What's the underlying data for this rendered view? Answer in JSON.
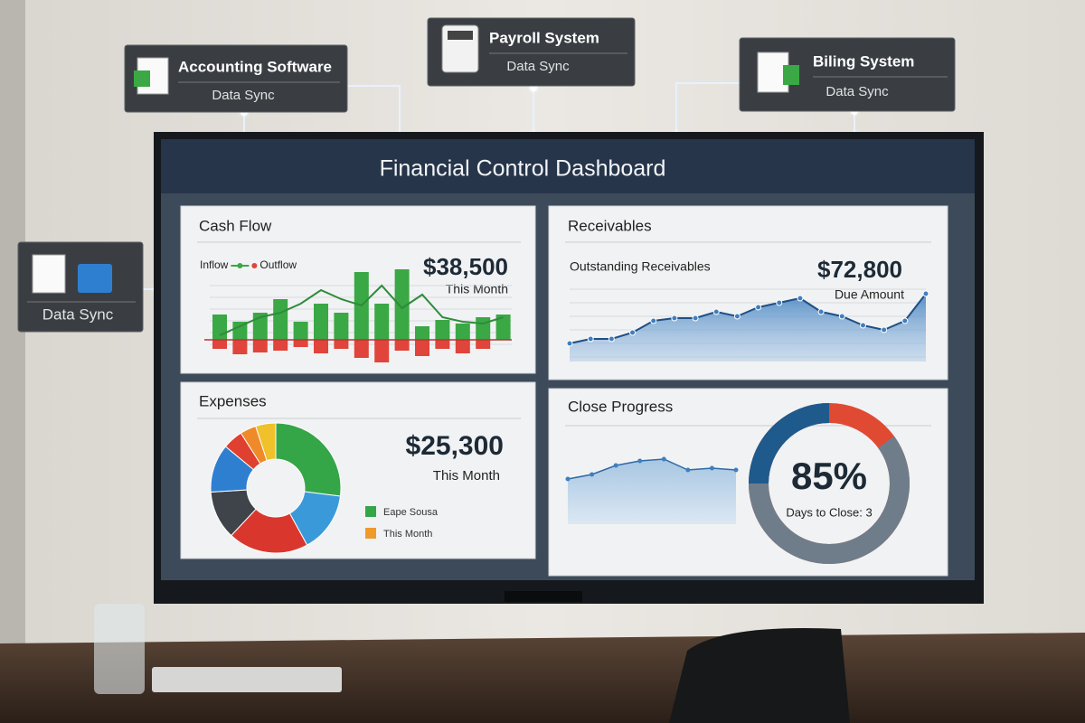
{
  "integrations": [
    {
      "name": "Accounting Software",
      "status": "Data Sync"
    },
    {
      "name": "Payroll System",
      "status": "Data Sync"
    },
    {
      "name": "Biling System",
      "status": "Data Sync"
    },
    {
      "status": "Data Sync"
    }
  ],
  "dashboard": {
    "title": "Financial Control Dashboard",
    "cash_flow": {
      "title": "Cash Flow",
      "amount": "$38,500",
      "period": "This Month",
      "type": "bar",
      "series": [
        {
          "name": "Inflow",
          "color": "#3aa845",
          "values": [
            28,
            20,
            30,
            45,
            20,
            40,
            30,
            75,
            40,
            78,
            15,
            22,
            18,
            25,
            28
          ]
        },
        {
          "name": "Outflow",
          "color": "#e0443a",
          "values": [
            -10,
            -16,
            -14,
            -12,
            -8,
            -15,
            -10,
            -20,
            -25,
            -12,
            -18,
            -10,
            -15,
            -10,
            0
          ]
        }
      ],
      "trend": {
        "color": "#2e8b3a",
        "values": [
          5,
          15,
          25,
          30,
          40,
          55,
          45,
          38,
          60,
          35,
          50,
          25,
          20,
          18,
          25
        ]
      }
    },
    "receivables": {
      "title": "Receivables",
      "subtitle": "Outstanding Receivables",
      "amount": "$72,800",
      "period": "Due Amount",
      "type": "area",
      "color": "#3f7fbf",
      "values": [
        20,
        25,
        25,
        32,
        45,
        48,
        48,
        55,
        50,
        60,
        65,
        70,
        55,
        50,
        40,
        35,
        45,
        75
      ]
    },
    "expenses": {
      "title": "Expenses",
      "amount": "$25,300",
      "period": "This Month",
      "type": "pie",
      "values": [
        27,
        15,
        20,
        12,
        12,
        5,
        4,
        5
      ],
      "colors": [
        "#34a648",
        "#3a9ad9",
        "#d9372e",
        "#3e4449",
        "#2f7fd1",
        "#e0402f",
        "#ef8a2a",
        "#efc12a"
      ],
      "legend": [
        {
          "name": "Eape Sousa",
          "color": "#34a648"
        },
        {
          "name": "This Month",
          "color": "#ef9a2a"
        }
      ]
    },
    "close_progress": {
      "title": "Close Progress",
      "type": "line",
      "color": "#3f7fbf",
      "values": [
        50,
        55,
        65,
        70,
        72,
        60,
        62,
        60
      ],
      "progress": 85,
      "progress_label": "85%",
      "note": "Days to Close: 3"
    }
  }
}
